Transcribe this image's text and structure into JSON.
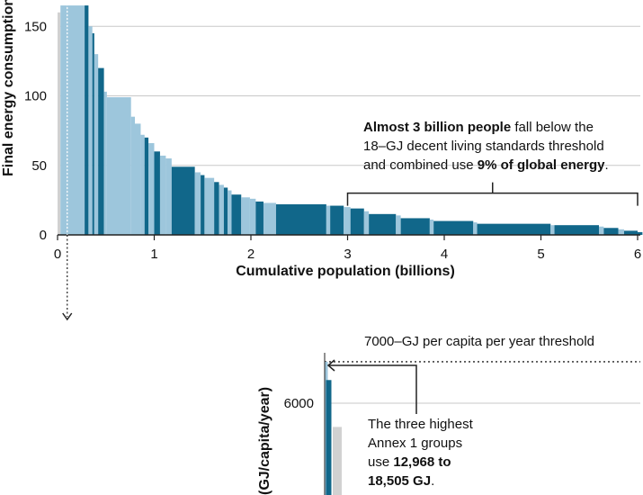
{
  "colors": {
    "dark": "#11678a",
    "light": "#9dc6dc",
    "grey": "#d1d1d1",
    "grid": "#c8c8c8",
    "axis": "#222222"
  },
  "chart_data": [
    {
      "type": "bar",
      "title": "",
      "ylabel": "Final energy consumption",
      "xlabel": "Cumulative population (billions)",
      "xlim": [
        0,
        6.05
      ],
      "ylim": [
        0,
        165
      ],
      "xticks": [
        "0",
        "1",
        "2",
        "3",
        "4",
        "5",
        "6"
      ],
      "yticks": [
        "0",
        "50",
        "100",
        "150"
      ],
      "bars": [
        {
          "x0": 0.0,
          "x1": 0.03,
          "value": 160,
          "group": "grey"
        },
        {
          "x0": 0.03,
          "x1": 0.1,
          "value": 165,
          "group": "light"
        },
        {
          "x0": 0.1,
          "x1": 0.2,
          "value": 165,
          "group": "light"
        },
        {
          "x0": 0.2,
          "x1": 0.28,
          "value": 165,
          "group": "light"
        },
        {
          "x0": 0.28,
          "x1": 0.32,
          "value": 165,
          "group": "dark"
        },
        {
          "x0": 0.32,
          "x1": 0.36,
          "value": 150,
          "group": "light"
        },
        {
          "x0": 0.36,
          "x1": 0.38,
          "value": 145,
          "group": "dark"
        },
        {
          "x0": 0.38,
          "x1": 0.42,
          "value": 130,
          "group": "light"
        },
        {
          "x0": 0.42,
          "x1": 0.48,
          "value": 120,
          "group": "dark"
        },
        {
          "x0": 0.48,
          "x1": 0.51,
          "value": 103,
          "group": "light"
        },
        {
          "x0": 0.51,
          "x1": 0.76,
          "value": 99,
          "group": "light"
        },
        {
          "x0": 0.76,
          "x1": 0.8,
          "value": 85,
          "group": "light"
        },
        {
          "x0": 0.8,
          "x1": 0.86,
          "value": 80,
          "group": "light"
        },
        {
          "x0": 0.86,
          "x1": 0.9,
          "value": 72,
          "group": "light"
        },
        {
          "x0": 0.9,
          "x1": 0.94,
          "value": 70,
          "group": "dark"
        },
        {
          "x0": 0.94,
          "x1": 1.0,
          "value": 66,
          "group": "light"
        },
        {
          "x0": 1.0,
          "x1": 1.06,
          "value": 60,
          "group": "dark"
        },
        {
          "x0": 1.06,
          "x1": 1.12,
          "value": 57,
          "group": "light"
        },
        {
          "x0": 1.12,
          "x1": 1.18,
          "value": 55,
          "group": "light"
        },
        {
          "x0": 1.18,
          "x1": 1.42,
          "value": 49,
          "group": "dark"
        },
        {
          "x0": 1.42,
          "x1": 1.48,
          "value": 45,
          "group": "light"
        },
        {
          "x0": 1.48,
          "x1": 1.52,
          "value": 43,
          "group": "dark"
        },
        {
          "x0": 1.52,
          "x1": 1.62,
          "value": 41,
          "group": "light"
        },
        {
          "x0": 1.62,
          "x1": 1.67,
          "value": 38,
          "group": "dark"
        },
        {
          "x0": 1.67,
          "x1": 1.72,
          "value": 36,
          "group": "light"
        },
        {
          "x0": 1.72,
          "x1": 1.76,
          "value": 34,
          "group": "dark"
        },
        {
          "x0": 1.76,
          "x1": 1.8,
          "value": 32,
          "group": "light"
        },
        {
          "x0": 1.8,
          "x1": 1.9,
          "value": 29,
          "group": "dark"
        },
        {
          "x0": 1.9,
          "x1": 1.99,
          "value": 27,
          "group": "light"
        },
        {
          "x0": 1.99,
          "x1": 2.05,
          "value": 26,
          "group": "light"
        },
        {
          "x0": 2.05,
          "x1": 2.13,
          "value": 24,
          "group": "dark"
        },
        {
          "x0": 2.13,
          "x1": 2.26,
          "value": 23,
          "group": "light"
        },
        {
          "x0": 2.26,
          "x1": 2.78,
          "value": 22,
          "group": "dark"
        },
        {
          "x0": 2.78,
          "x1": 2.82,
          "value": 21,
          "group": "light"
        },
        {
          "x0": 2.82,
          "x1": 2.96,
          "value": 21,
          "group": "dark"
        },
        {
          "x0": 2.96,
          "x1": 3.03,
          "value": 20,
          "group": "light"
        },
        {
          "x0": 3.03,
          "x1": 3.17,
          "value": 19,
          "group": "dark"
        },
        {
          "x0": 3.17,
          "x1": 3.22,
          "value": 17,
          "group": "light"
        },
        {
          "x0": 3.22,
          "x1": 3.5,
          "value": 15,
          "group": "dark"
        },
        {
          "x0": 3.5,
          "x1": 3.55,
          "value": 14,
          "group": "light"
        },
        {
          "x0": 3.55,
          "x1": 3.85,
          "value": 12,
          "group": "dark"
        },
        {
          "x0": 3.85,
          "x1": 3.89,
          "value": 11,
          "group": "light"
        },
        {
          "x0": 3.89,
          "x1": 4.3,
          "value": 10,
          "group": "dark"
        },
        {
          "x0": 4.3,
          "x1": 4.34,
          "value": 9,
          "group": "light"
        },
        {
          "x0": 4.34,
          "x1": 5.1,
          "value": 8,
          "group": "dark"
        },
        {
          "x0": 5.1,
          "x1": 5.14,
          "value": 7,
          "group": "light"
        },
        {
          "x0": 5.14,
          "x1": 5.6,
          "value": 7,
          "group": "dark"
        },
        {
          "x0": 5.6,
          "x1": 5.65,
          "value": 6,
          "group": "light"
        },
        {
          "x0": 5.65,
          "x1": 5.8,
          "value": 5,
          "group": "dark"
        },
        {
          "x0": 5.8,
          "x1": 5.86,
          "value": 4,
          "group": "light"
        },
        {
          "x0": 5.86,
          "x1": 6.0,
          "value": 3,
          "group": "dark"
        },
        {
          "x0": 6.0,
          "x1": 6.05,
          "value": 2,
          "group": "dark"
        }
      ],
      "marker_x": 0.1,
      "bracket": {
        "x0": 3.0,
        "x1": 6.0,
        "level": 30,
        "tip": 8
      },
      "annotation": [
        [
          {
            "t": "Almost 3 billion people",
            "b": true
          },
          {
            "t": " fall below the",
            "b": false
          }
        ],
        [
          {
            "t": "18–GJ decent living standards threshold",
            "b": false
          }
        ],
        [
          {
            "t": "and combined use ",
            "b": false
          },
          {
            "t": "9% of global energy",
            "b": true
          },
          {
            "t": ".",
            "b": false
          }
        ]
      ]
    },
    {
      "type": "bar",
      "ylabel": "(GJ/capita/year)",
      "yticks": [
        {
          "label": "6000",
          "value": 6000
        }
      ],
      "ylim": [
        0,
        7000
      ],
      "threshold": {
        "value": 7000,
        "label": "7000–GJ per capita per year threshold"
      },
      "bars": [
        {
          "value": 7000,
          "group": "light"
        },
        {
          "value": 6550,
          "group": "dark"
        },
        {
          "value": 5400,
          "group": "grey"
        }
      ],
      "annotation": [
        [
          {
            "t": "The three highest",
            "b": false
          }
        ],
        [
          {
            "t": "Annex 1 groups",
            "b": false
          }
        ],
        [
          {
            "t": "use ",
            "b": false
          },
          {
            "t": "12,968 to",
            "b": true
          }
        ],
        [
          {
            "t": "18,505 GJ",
            "b": true
          },
          {
            "t": ".",
            "b": false
          }
        ]
      ]
    }
  ]
}
